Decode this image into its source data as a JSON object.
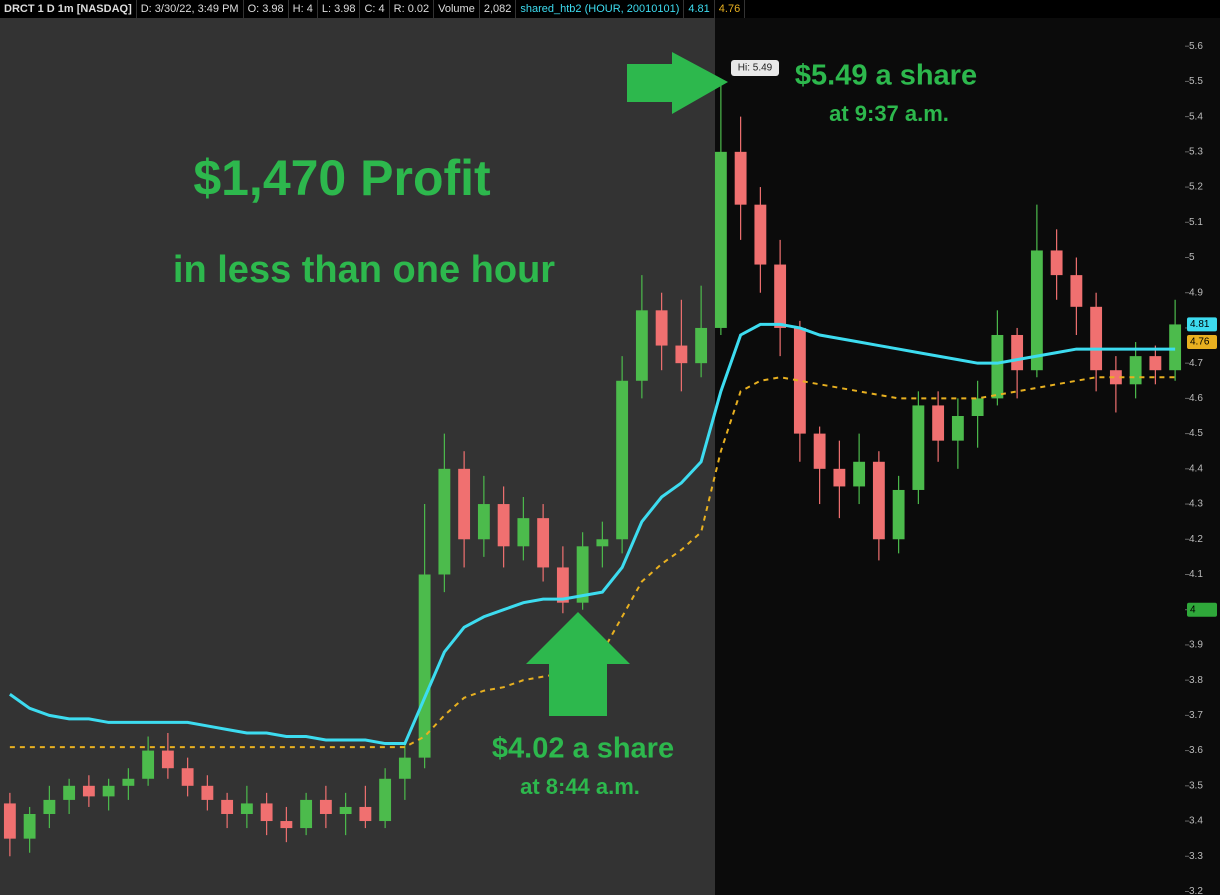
{
  "header": {
    "items": [
      "DRCT 1 D 1m [NASDAQ]",
      "D: 3/30/22, 3:49 PM",
      "O: 3.98",
      "H: 4",
      "L: 3.98",
      "C: 4",
      "R: 0.02",
      "Volume",
      "2,082",
      "shared_htb2 (HOUR, 20010101)",
      "4.81",
      "4.76"
    ]
  },
  "annotations": {
    "profit": "$1,470 Profit",
    "duration": "in less than one hour",
    "sell_price": "$5.49 a share",
    "sell_time": "at 9:37 a.m.",
    "buy_price": "$4.02 a share",
    "buy_time": "at 8:44 a.m.",
    "high_label": "Hi: 5.49"
  },
  "chart_data": {
    "type": "candlestick",
    "ylim": [
      3.19,
      5.68
    ],
    "yticks": [
      3.2,
      3.3,
      3.4,
      3.5,
      3.6,
      3.7,
      3.8,
      3.9,
      4,
      4.1,
      4.2,
      4.3,
      4.4,
      4.5,
      4.6,
      4.7,
      4.8,
      4.9,
      5,
      5.1,
      5.2,
      5.3,
      5.4,
      5.5,
      5.6
    ],
    "up_color": "#4cbb4c",
    "down_color": "#f07070",
    "open": [
      3.45,
      3.35,
      3.42,
      3.46,
      3.5,
      3.47,
      3.5,
      3.52,
      3.6,
      3.55,
      3.5,
      3.46,
      3.42,
      3.45,
      3.4,
      3.38,
      3.46,
      3.42,
      3.44,
      3.4,
      3.52,
      3.58,
      4.1,
      4.4,
      4.2,
      4.3,
      4.18,
      4.26,
      4.12,
      4.02,
      4.18,
      4.2,
      4.65,
      4.85,
      4.75,
      4.7,
      4.8,
      5.3,
      5.15,
      4.98,
      4.8,
      4.5,
      4.4,
      4.35,
      4.42,
      4.2,
      4.34,
      4.58,
      4.48,
      4.55,
      4.6,
      4.78,
      4.68,
      5.02,
      4.95,
      4.86,
      4.68,
      4.64,
      4.72,
      4.68
    ],
    "high": [
      3.48,
      3.44,
      3.5,
      3.52,
      3.53,
      3.52,
      3.55,
      3.64,
      3.65,
      3.58,
      3.53,
      3.48,
      3.5,
      3.48,
      3.44,
      3.48,
      3.5,
      3.48,
      3.5,
      3.55,
      3.62,
      4.3,
      4.5,
      4.45,
      4.38,
      4.35,
      4.32,
      4.3,
      4.18,
      4.22,
      4.25,
      4.72,
      4.95,
      4.9,
      4.88,
      4.92,
      5.49,
      5.4,
      5.2,
      5.05,
      4.82,
      4.52,
      4.48,
      4.5,
      4.45,
      4.38,
      4.62,
      4.62,
      4.6,
      4.65,
      4.85,
      4.8,
      5.15,
      5.08,
      5.0,
      4.9,
      4.72,
      4.76,
      4.75,
      4.88
    ],
    "low": [
      3.3,
      3.31,
      3.38,
      3.42,
      3.44,
      3.43,
      3.46,
      3.5,
      3.52,
      3.47,
      3.43,
      3.38,
      3.38,
      3.36,
      3.34,
      3.36,
      3.38,
      3.36,
      3.38,
      3.38,
      3.46,
      3.55,
      4.05,
      4.12,
      4.15,
      4.12,
      4.14,
      4.08,
      3.99,
      4.0,
      4.12,
      4.16,
      4.6,
      4.68,
      4.62,
      4.66,
      4.78,
      5.05,
      4.9,
      4.72,
      4.42,
      4.3,
      4.26,
      4.3,
      4.14,
      4.16,
      4.3,
      4.42,
      4.4,
      4.46,
      4.58,
      4.6,
      4.66,
      4.88,
      4.78,
      4.62,
      4.56,
      4.6,
      4.64,
      4.65
    ],
    "close": [
      3.35,
      3.42,
      3.46,
      3.5,
      3.47,
      3.5,
      3.52,
      3.6,
      3.55,
      3.5,
      3.46,
      3.42,
      3.45,
      3.4,
      3.38,
      3.46,
      3.42,
      3.44,
      3.4,
      3.52,
      3.58,
      4.1,
      4.4,
      4.2,
      4.3,
      4.18,
      4.26,
      4.12,
      4.02,
      4.18,
      4.2,
      4.65,
      4.85,
      4.75,
      4.7,
      4.8,
      5.3,
      5.15,
      4.98,
      4.8,
      4.5,
      4.4,
      4.35,
      4.42,
      4.2,
      4.34,
      4.58,
      4.48,
      4.55,
      4.6,
      4.78,
      4.68,
      5.02,
      4.95,
      4.86,
      4.68,
      4.64,
      4.72,
      4.68,
      4.81
    ],
    "overlays": [
      {
        "color": "#3ddcf0",
        "dashed": false,
        "values": [
          3.76,
          3.72,
          3.7,
          3.69,
          3.69,
          3.68,
          3.68,
          3.68,
          3.68,
          3.68,
          3.67,
          3.66,
          3.65,
          3.65,
          3.64,
          3.64,
          3.63,
          3.63,
          3.63,
          3.62,
          3.62,
          3.75,
          3.88,
          3.95,
          3.98,
          4.0,
          4.02,
          4.03,
          4.03,
          4.04,
          4.05,
          4.12,
          4.25,
          4.32,
          4.36,
          4.42,
          4.62,
          4.78,
          4.81,
          4.81,
          4.8,
          4.78,
          4.77,
          4.76,
          4.75,
          4.74,
          4.73,
          4.72,
          4.71,
          4.7,
          4.7,
          4.71,
          4.72,
          4.73,
          4.74,
          4.74,
          4.74,
          4.74,
          4.74,
          4.74
        ]
      },
      {
        "color": "#e8b020",
        "dashed": true,
        "values": [
          3.61,
          3.61,
          3.61,
          3.61,
          3.61,
          3.61,
          3.61,
          3.61,
          3.61,
          3.61,
          3.61,
          3.61,
          3.61,
          3.61,
          3.61,
          3.61,
          3.61,
          3.61,
          3.61,
          3.61,
          3.61,
          3.64,
          3.7,
          3.75,
          3.77,
          3.78,
          3.8,
          3.81,
          3.82,
          3.84,
          3.88,
          3.98,
          4.08,
          4.13,
          4.17,
          4.22,
          4.45,
          4.62,
          4.65,
          4.66,
          4.65,
          4.64,
          4.63,
          4.62,
          4.61,
          4.6,
          4.6,
          4.6,
          4.6,
          4.6,
          4.61,
          4.62,
          4.63,
          4.64,
          4.65,
          4.66,
          4.66,
          4.66,
          4.66,
          4.66
        ]
      }
    ],
    "price_labels": [
      {
        "value": 4.81,
        "color": "#3ddcf0"
      },
      {
        "value": 4.76,
        "color": "#e8b020"
      },
      {
        "value": 4,
        "color": "#2fa83a"
      }
    ]
  }
}
